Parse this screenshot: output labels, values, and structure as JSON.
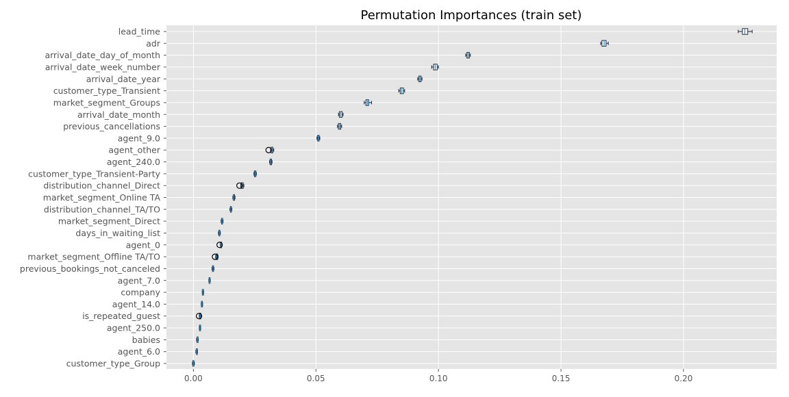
{
  "chart_data": {
    "type": "box",
    "orientation": "horizontal",
    "title": "Permutation Importances (train set)",
    "xlabel": "",
    "ylabel": "",
    "xlim": [
      -0.011,
      0.238
    ],
    "xticks": [
      0.0,
      0.05,
      0.1,
      0.15,
      0.2
    ],
    "xtick_labels": [
      "0.00",
      "0.05",
      "0.10",
      "0.15",
      "0.20"
    ],
    "grid": true,
    "style": "ggplot",
    "colors": {
      "plot_background": "#e5e5e5",
      "grid": "#ffffff",
      "box_edge": "#1a2a40",
      "box_fill": "#ffffff",
      "median": "#3a8fc4",
      "text": "#555555",
      "title": "#000000"
    },
    "categories": [
      "lead_time",
      "adr",
      "arrival_date_day_of_month",
      "arrival_date_week_number",
      "arrival_date_year",
      "customer_type_Transient",
      "market_segment_Groups",
      "arrival_date_month",
      "previous_cancellations",
      "agent_9.0",
      "agent_other",
      "agent_240.0",
      "customer_type_Transient-Party",
      "distribution_channel_Direct",
      "market_segment_Online TA",
      "distribution_channel_TA/TO",
      "market_segment_Direct",
      "days_in_waiting_list",
      "agent_0",
      "market_segment_Offline TA/TO",
      "previous_bookings_not_canceled",
      "agent_7.0",
      "company",
      "agent_14.0",
      "is_repeated_guest",
      "agent_250.0",
      "babies",
      "agent_6.0",
      "customer_type_Group"
    ],
    "boxes": [
      {
        "whislo": 0.2223,
        "q1": 0.224,
        "med": 0.225,
        "q3": 0.2262,
        "whishi": 0.228,
        "fliers": []
      },
      {
        "whislo": 0.1662,
        "q1": 0.1667,
        "med": 0.1676,
        "q3": 0.1684,
        "whishi": 0.1693,
        "fliers": []
      },
      {
        "whislo": 0.1111,
        "q1": 0.1116,
        "med": 0.1121,
        "q3": 0.1126,
        "whishi": 0.113,
        "fliers": []
      },
      {
        "whislo": 0.0972,
        "q1": 0.098,
        "med": 0.0987,
        "q3": 0.0995,
        "whishi": 0.1,
        "fliers": []
      },
      {
        "whislo": 0.0915,
        "q1": 0.092,
        "med": 0.0924,
        "q3": 0.0929,
        "whishi": 0.0933,
        "fliers": []
      },
      {
        "whislo": 0.0838,
        "q1": 0.0844,
        "med": 0.085,
        "q3": 0.0857,
        "whishi": 0.0862,
        "fliers": []
      },
      {
        "whislo": 0.0697,
        "q1": 0.0704,
        "med": 0.071,
        "q3": 0.0715,
        "whishi": 0.0727,
        "fliers": []
      },
      {
        "whislo": 0.0592,
        "q1": 0.0596,
        "med": 0.0601,
        "q3": 0.0607,
        "whishi": 0.0611,
        "fliers": []
      },
      {
        "whislo": 0.0588,
        "q1": 0.0592,
        "med": 0.0596,
        "q3": 0.0601,
        "whishi": 0.0605,
        "fliers": []
      },
      {
        "whislo": 0.0504,
        "q1": 0.0507,
        "med": 0.051,
        "q3": 0.0513,
        "whishi": 0.0516,
        "fliers": []
      },
      {
        "whislo": 0.0315,
        "q1": 0.0317,
        "med": 0.0321,
        "q3": 0.0324,
        "whishi": 0.0328,
        "fliers": [
          0.0307
        ]
      },
      {
        "whislo": 0.0311,
        "q1": 0.0313,
        "med": 0.0316,
        "q3": 0.0319,
        "whishi": 0.0321,
        "fliers": []
      },
      {
        "whislo": 0.0247,
        "q1": 0.0249,
        "med": 0.0252,
        "q3": 0.0255,
        "whishi": 0.0257,
        "fliers": []
      },
      {
        "whislo": 0.0193,
        "q1": 0.0195,
        "med": 0.0199,
        "q3": 0.0203,
        "whishi": 0.0206,
        "fliers": [
          0.0188
        ]
      },
      {
        "whislo": 0.0161,
        "q1": 0.0163,
        "med": 0.0165,
        "q3": 0.0168,
        "whishi": 0.017,
        "fliers": []
      },
      {
        "whislo": 0.0149,
        "q1": 0.0151,
        "med": 0.0153,
        "q3": 0.0155,
        "whishi": 0.0157,
        "fliers": []
      },
      {
        "whislo": 0.0113,
        "q1": 0.0115,
        "med": 0.0117,
        "q3": 0.0119,
        "whishi": 0.0121,
        "fliers": []
      },
      {
        "whislo": 0.0102,
        "q1": 0.0104,
        "med": 0.0106,
        "q3": 0.0108,
        "whishi": 0.011,
        "fliers": []
      },
      {
        "whislo": 0.011,
        "q1": 0.0111,
        "med": 0.0113,
        "q3": 0.0115,
        "whishi": 0.0117,
        "fliers": [
          0.0107
        ]
      },
      {
        "whislo": 0.0091,
        "q1": 0.0093,
        "med": 0.0096,
        "q3": 0.0099,
        "whishi": 0.0101,
        "fliers": [
          0.0088
        ]
      },
      {
        "whislo": 0.0076,
        "q1": 0.0078,
        "med": 0.008,
        "q3": 0.0082,
        "whishi": 0.0084,
        "fliers": []
      },
      {
        "whislo": 0.0063,
        "q1": 0.0064,
        "med": 0.0066,
        "q3": 0.0068,
        "whishi": 0.0069,
        "fliers": []
      },
      {
        "whislo": 0.0036,
        "q1": 0.0037,
        "med": 0.0039,
        "q3": 0.0041,
        "whishi": 0.0042,
        "fliers": []
      },
      {
        "whislo": 0.0032,
        "q1": 0.0033,
        "med": 0.0035,
        "q3": 0.0037,
        "whishi": 0.0038,
        "fliers": []
      },
      {
        "whislo": 0.0024,
        "q1": 0.0026,
        "med": 0.0028,
        "q3": 0.003,
        "whishi": 0.0032,
        "fliers": [
          0.0023
        ]
      },
      {
        "whislo": 0.0024,
        "q1": 0.0025,
        "med": 0.0027,
        "q3": 0.0029,
        "whishi": 0.003,
        "fliers": []
      },
      {
        "whislo": 0.0013,
        "q1": 0.0015,
        "med": 0.0017,
        "q3": 0.0019,
        "whishi": 0.002,
        "fliers": []
      },
      {
        "whislo": 0.001,
        "q1": 0.0012,
        "med": 0.0014,
        "q3": 0.0016,
        "whishi": 0.0017,
        "fliers": []
      },
      {
        "whislo": -0.0004,
        "q1": -0.0002,
        "med": 0.0,
        "q3": 0.0002,
        "whishi": 0.0004,
        "fliers": []
      }
    ]
  }
}
